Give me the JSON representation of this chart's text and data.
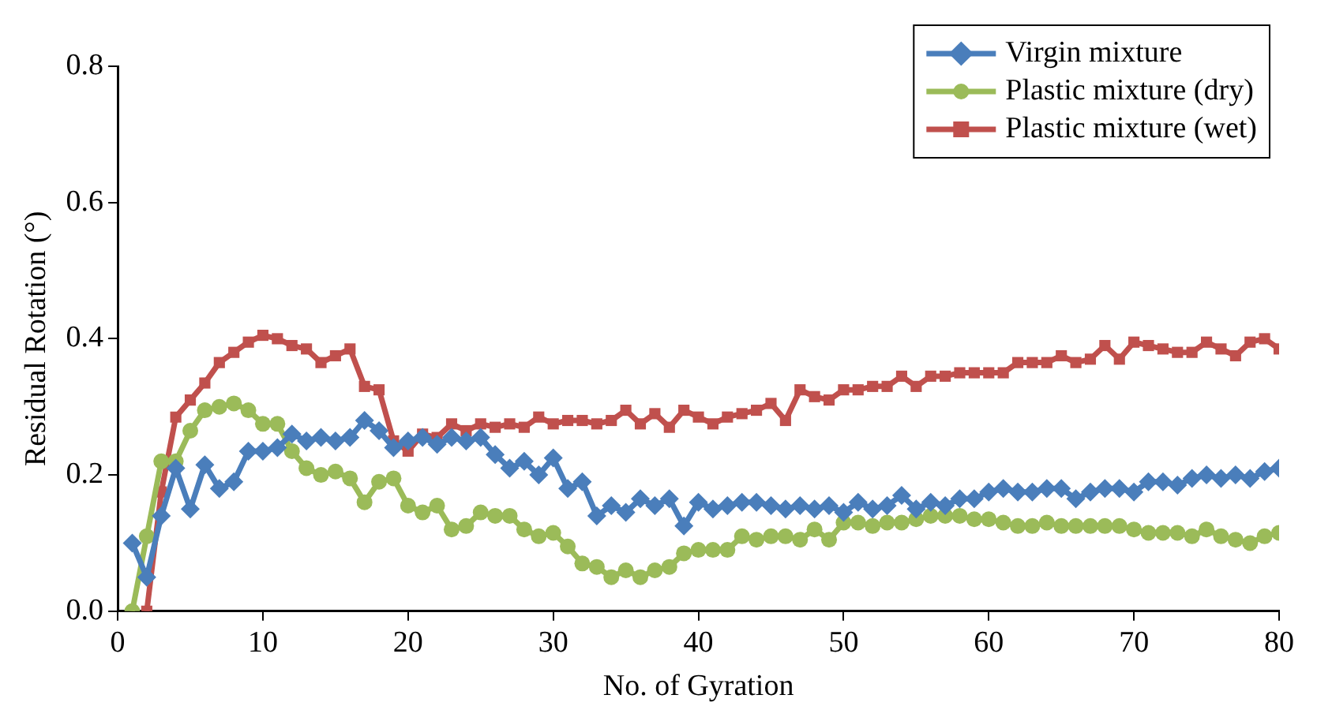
{
  "chart_data": {
    "type": "line",
    "xlabel": "No. of Gyration",
    "ylabel": "Residual Rotation (°)",
    "x": [
      1,
      2,
      3,
      4,
      5,
      6,
      7,
      8,
      9,
      10,
      11,
      12,
      13,
      14,
      15,
      16,
      17,
      18,
      19,
      20,
      21,
      22,
      23,
      24,
      25,
      26,
      27,
      28,
      29,
      30,
      31,
      32,
      33,
      34,
      35,
      36,
      37,
      38,
      39,
      40,
      41,
      42,
      43,
      44,
      45,
      46,
      47,
      48,
      49,
      50,
      51,
      52,
      53,
      54,
      55,
      56,
      57,
      58,
      59,
      60,
      61,
      62,
      63,
      64,
      65,
      66,
      67,
      68,
      69,
      70,
      71,
      72,
      73,
      74,
      75,
      76,
      77,
      78,
      79,
      80
    ],
    "series": [
      {
        "name": "Virgin mixture",
        "color": "#4a7ebb",
        "marker": "diamond",
        "values": [
          0.1,
          0.05,
          0.14,
          0.21,
          0.15,
          0.215,
          0.18,
          0.19,
          0.235,
          0.235,
          0.24,
          0.26,
          0.25,
          0.255,
          0.25,
          0.255,
          0.28,
          0.265,
          0.24,
          0.25,
          0.255,
          0.245,
          0.255,
          0.25,
          0.255,
          0.23,
          0.21,
          0.22,
          0.2,
          0.225,
          0.18,
          0.19,
          0.14,
          0.155,
          0.145,
          0.165,
          0.155,
          0.165,
          0.125,
          0.16,
          0.15,
          0.155,
          0.16,
          0.16,
          0.155,
          0.15,
          0.155,
          0.15,
          0.155,
          0.145,
          0.16,
          0.15,
          0.155,
          0.17,
          0.15,
          0.16,
          0.155,
          0.165,
          0.165,
          0.175,
          0.18,
          0.175,
          0.175,
          0.18,
          0.18,
          0.165,
          0.175,
          0.18,
          0.18,
          0.175,
          0.19,
          0.19,
          0.185,
          0.195,
          0.2,
          0.195,
          0.2,
          0.195,
          0.205,
          0.21
        ]
      },
      {
        "name": "Plastic mixture (dry)",
        "color": "#9bbb59",
        "marker": "circle",
        "values": [
          0.0,
          0.11,
          0.22,
          0.22,
          0.265,
          0.295,
          0.3,
          0.305,
          0.295,
          0.275,
          0.275,
          0.235,
          0.21,
          0.2,
          0.205,
          0.195,
          0.16,
          0.19,
          0.195,
          0.155,
          0.145,
          0.155,
          0.12,
          0.125,
          0.145,
          0.14,
          0.14,
          0.12,
          0.11,
          0.115,
          0.095,
          0.07,
          0.065,
          0.05,
          0.06,
          0.05,
          0.06,
          0.065,
          0.085,
          0.09,
          0.09,
          0.09,
          0.11,
          0.105,
          0.11,
          0.11,
          0.105,
          0.12,
          0.105,
          0.13,
          0.13,
          0.125,
          0.13,
          0.13,
          0.135,
          0.14,
          0.14,
          0.14,
          0.135,
          0.135,
          0.13,
          0.125,
          0.125,
          0.13,
          0.125,
          0.125,
          0.125,
          0.125,
          0.125,
          0.12,
          0.115,
          0.115,
          0.115,
          0.11,
          0.12,
          0.11,
          0.105,
          0.1,
          0.11,
          0.115
        ]
      },
      {
        "name": "Plastic mixture (wet)",
        "color": "#c0504d",
        "marker": "square",
        "values": [
          null,
          0.0,
          0.175,
          0.285,
          0.31,
          0.335,
          0.365,
          0.38,
          0.395,
          0.405,
          0.4,
          0.39,
          0.385,
          0.365,
          0.375,
          0.385,
          0.33,
          0.325,
          0.25,
          0.235,
          0.26,
          0.255,
          0.275,
          0.265,
          0.275,
          0.27,
          0.275,
          0.27,
          0.285,
          0.275,
          0.28,
          0.28,
          0.275,
          0.28,
          0.295,
          0.275,
          0.29,
          0.27,
          0.295,
          0.285,
          0.275,
          0.285,
          0.29,
          0.295,
          0.305,
          0.28,
          0.325,
          0.315,
          0.31,
          0.325,
          0.325,
          0.33,
          0.33,
          0.345,
          0.33,
          0.345,
          0.345,
          0.35,
          0.35,
          0.35,
          0.35,
          0.365,
          0.365,
          0.365,
          0.375,
          0.365,
          0.37,
          0.39,
          0.37,
          0.395,
          0.39,
          0.385,
          0.38,
          0.38,
          0.395,
          0.385,
          0.375,
          0.395,
          0.4,
          0.385
        ]
      }
    ],
    "xlim": [
      0,
      80
    ],
    "xticks": [
      0,
      10,
      20,
      30,
      40,
      50,
      60,
      70,
      80
    ],
    "ylim": [
      0,
      0.8
    ],
    "yticks": [
      {
        "value": 0,
        "label": "0.0"
      },
      {
        "value": 0.2,
        "label": "0.2"
      },
      {
        "value": 0.4,
        "label": "0.4"
      },
      {
        "value": 0.6,
        "label": "0.6"
      },
      {
        "value": 0.8,
        "label": "0.8"
      }
    ],
    "legend": "top right",
    "grid": false
  }
}
